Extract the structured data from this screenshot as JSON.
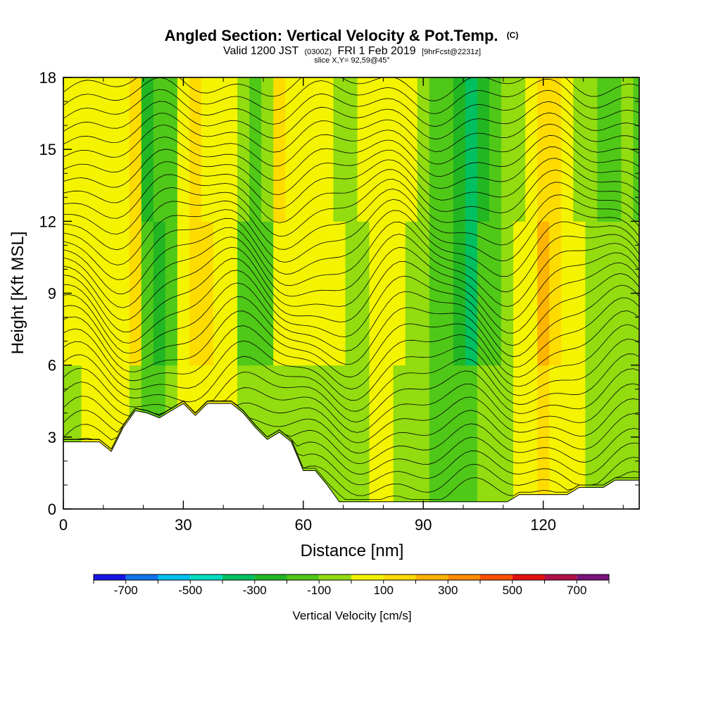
{
  "chart_data": {
    "type": "heatmap",
    "title": "Angled Section: Vertical Velocity & Pot.Temp.",
    "title_units": "(C)",
    "subtitle": {
      "valid": "Valid 1200 JST",
      "utc": "(0300Z)",
      "date": "FRI 1 Feb 2019",
      "forecast": "[9hrFcst@2231z]"
    },
    "slice_label": "slice X,Y= 92,59@45°",
    "xlabel": "Distance [nm]",
    "ylabel": "Height [Kft MSL]",
    "xlim": [
      0,
      144
    ],
    "ylim": [
      0,
      18
    ],
    "x_ticks": [
      0,
      30,
      60,
      90,
      120
    ],
    "y_ticks": [
      0,
      3,
      6,
      9,
      12,
      15,
      18
    ],
    "grid": false,
    "colorbar": {
      "title": "Vertical Velocity [cm/s]",
      "tick_labels": [
        "-700",
        "-500",
        "-300",
        "-100",
        "100",
        "300",
        "500",
        "700"
      ],
      "tick_values": [
        -700,
        -500,
        -300,
        -100,
        100,
        300,
        500,
        700
      ],
      "bounds": [
        -800,
        -700,
        -600,
        -500,
        -400,
        -300,
        -200,
        -100,
        0,
        100,
        200,
        300,
        400,
        500,
        600,
        700,
        800
      ],
      "colors": [
        "#1515e6",
        "#1273ea",
        "#00c0f0",
        "#00dcc0",
        "#00c060",
        "#22b622",
        "#50c818",
        "#92dc10",
        "#f4f400",
        "#ffdc00",
        "#ffb400",
        "#ff8c00",
        "#ff5000",
        "#e61010",
        "#b4104a",
        "#7a147a"
      ]
    },
    "wband_x": [
      0,
      3,
      6,
      9,
      12,
      15,
      18,
      21,
      24,
      27,
      30,
      33,
      36,
      39,
      42,
      45,
      48,
      51,
      54,
      57,
      60,
      63,
      66,
      69,
      72,
      75,
      78,
      81,
      84,
      87,
      90,
      93,
      96,
      99,
      102,
      105,
      108,
      111,
      114,
      117,
      120,
      123,
      126,
      129,
      132,
      135,
      138,
      141,
      144
    ],
    "wband_top": [
      50,
      50,
      50,
      50,
      50,
      50,
      150,
      -250,
      -150,
      -150,
      50,
      150,
      50,
      50,
      50,
      -50,
      -150,
      -50,
      150,
      50,
      50,
      50,
      50,
      -50,
      -50,
      50,
      50,
      50,
      50,
      50,
      -50,
      -150,
      -150,
      -250,
      -350,
      -250,
      -150,
      -50,
      -50,
      50,
      150,
      150,
      50,
      -50,
      -50,
      -150,
      -150,
      -50,
      -150
    ],
    "wband_mid": [
      50,
      50,
      50,
      50,
      50,
      50,
      150,
      -150,
      -250,
      -150,
      50,
      150,
      150,
      50,
      50,
      -150,
      -150,
      -150,
      50,
      50,
      50,
      50,
      50,
      50,
      -50,
      -50,
      50,
      50,
      50,
      -50,
      -50,
      -150,
      -150,
      -250,
      -350,
      -150,
      -150,
      -50,
      50,
      50,
      250,
      150,
      50,
      50,
      -50,
      -50,
      -50,
      -50,
      -50
    ],
    "wband_low": [
      -50,
      -50,
      50,
      50,
      50,
      50,
      -50,
      -150,
      -150,
      -50,
      50,
      50,
      50,
      50,
      50,
      -50,
      -50,
      -50,
      -50,
      -50,
      -50,
      -50,
      -50,
      -50,
      -50,
      -50,
      50,
      50,
      -50,
      -50,
      -50,
      -150,
      -150,
      -150,
      -150,
      -50,
      -50,
      -50,
      50,
      50,
      150,
      50,
      50,
      50,
      -50,
      -50,
      -50,
      -50,
      -50
    ],
    "terrain_x": [
      0,
      3,
      6,
      9,
      12,
      15,
      18,
      21,
      24,
      27,
      30,
      33,
      36,
      39,
      42,
      45,
      48,
      51,
      54,
      57,
      60,
      63,
      66,
      69,
      72,
      75,
      78,
      81,
      84,
      87,
      90,
      93,
      96,
      99,
      102,
      105,
      108,
      111,
      114,
      117,
      120,
      123,
      126,
      129,
      132,
      135,
      138,
      141,
      144
    ],
    "terrain_kft": [
      2.8,
      2.8,
      2.8,
      2.8,
      2.4,
      3.4,
      4.1,
      4.0,
      3.8,
      4.1,
      4.4,
      3.9,
      4.4,
      4.4,
      4.4,
      4.0,
      3.4,
      2.9,
      3.2,
      2.8,
      1.6,
      1.6,
      1.0,
      0.3,
      0.3,
      0.3,
      0.3,
      0.3,
      0.3,
      0.3,
      0.3,
      0.3,
      0.3,
      0.3,
      0.3,
      0.3,
      0.3,
      0.3,
      0.6,
      0.6,
      0.6,
      0.6,
      0.6,
      0.9,
      0.9,
      0.9,
      1.2,
      1.2,
      1.2
    ]
  }
}
